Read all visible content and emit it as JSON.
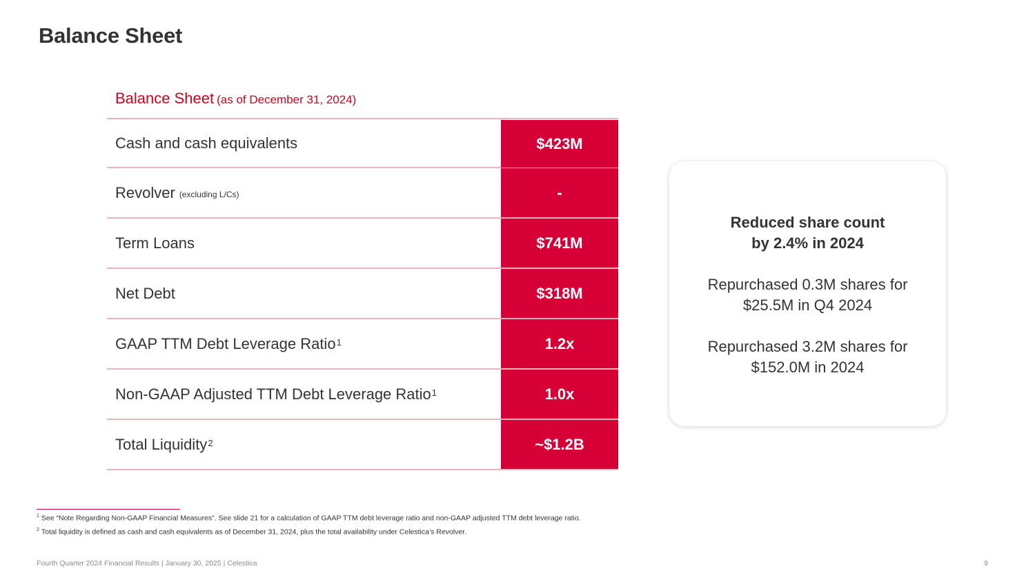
{
  "page": {
    "title": "Balance Sheet"
  },
  "table": {
    "title": "Balance Sheet",
    "subtitle": "(as of December 31, 2024)",
    "rows": [
      {
        "label": "Cash and cash equivalents",
        "note": "",
        "sup": "",
        "value": "$423M"
      },
      {
        "label": "Revolver",
        "note": "(excluding L/Cs)",
        "sup": "",
        "value": "-"
      },
      {
        "label": "Term Loans",
        "note": "",
        "sup": "",
        "value": "$741M"
      },
      {
        "label": "Net Debt",
        "note": "",
        "sup": "",
        "value": "$318M"
      },
      {
        "label": "GAAP TTM Debt Leverage Ratio",
        "note": "",
        "sup": "1",
        "value": "1.2x"
      },
      {
        "label": "Non-GAAP Adjusted TTM Debt Leverage Ratio",
        "note": "",
        "sup": "1",
        "value": "1.0x"
      },
      {
        "label": "Total Liquidity",
        "note": "",
        "sup": "2",
        "value": "~$1.2B"
      }
    ]
  },
  "callout": {
    "headline_1": "Reduced share count",
    "headline_2": "by 2.4% in 2024",
    "para1_line1": "Repurchased 0.3M shares for",
    "para1_line2": "$25.5M in Q4 2024",
    "para2_line1": "Repurchased 3.2M shares for",
    "para2_line2": "$152.0M in 2024"
  },
  "footnotes": [
    {
      "marker": "1",
      "text": "See “Note Regarding Non-GAAP Financial Measures”. See slide 21 for a calculation of GAAP TTM debt leverage ratio and non-GAAP adjusted TTM debt leverage ratio."
    },
    {
      "marker": "2",
      "text": "Total liquidity is defined as cash and cash equivalents as of December 31, 2024, plus the total availability under Celestica’s Revolver."
    }
  ],
  "footer": {
    "text": "Fourth Quarter 2024 Financial Results |  January 30, 2025  |  Celestica",
    "page_number": "9"
  },
  "colors": {
    "accent": "#d60036",
    "text": "#333333",
    "divider": "#e8b4bd"
  }
}
